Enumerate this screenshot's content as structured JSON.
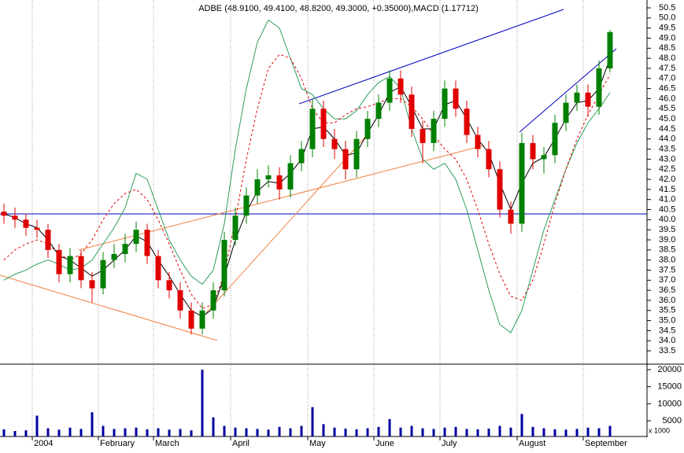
{
  "chart_data": {
    "type": "candlestick",
    "title": "ADBE (48.9100, 49.4100, 48.8200, 49.3000, +0.35000),MACD (1.17712)",
    "categories": [
      null,
      null,
      null,
      "2004",
      null,
      null,
      null,
      null,
      null,
      "February",
      null,
      null,
      null,
      null,
      "March",
      null,
      null,
      null,
      null,
      null,
      null,
      "April",
      null,
      null,
      null,
      null,
      null,
      null,
      "May",
      null,
      null,
      null,
      null,
      null,
      "June",
      null,
      null,
      null,
      null,
      null,
      "July",
      null,
      null,
      null,
      null,
      null,
      null,
      "August",
      null,
      null,
      null,
      null,
      null,
      "September",
      null,
      null
    ],
    "open": [
      40.4,
      40.2,
      40.0,
      39.6,
      39.5,
      38.5,
      37.3,
      38.2,
      37.0,
      36.6,
      38.0,
      38.3,
      38.8,
      39.5,
      38.2,
      37.0,
      36.5,
      35.5,
      34.6,
      35.5,
      36.5,
      39.0,
      40.2,
      41.2,
      42.0,
      42.2,
      41.5,
      42.8,
      43.5,
      45.5,
      44.0,
      43.5,
      42.5,
      44.0,
      45.0,
      45.8,
      47.0,
      46.2,
      44.5,
      43.8,
      45.0,
      46.5,
      45.5,
      44.2,
      43.5,
      42.5,
      40.5,
      39.8,
      43.8,
      43.0,
      43.2,
      44.8,
      45.8,
      46.3,
      45.6,
      47.5
    ],
    "high": [
      40.8,
      40.6,
      40.3,
      40.0,
      39.8,
      38.8,
      38.6,
      38.5,
      37.4,
      38.4,
      38.8,
      39.3,
      39.9,
      39.8,
      38.5,
      37.4,
      36.9,
      35.9,
      35.9,
      36.9,
      39.4,
      40.6,
      41.6,
      42.5,
      42.7,
      42.6,
      43.2,
      43.9,
      46.0,
      45.9,
      44.5,
      43.9,
      44.4,
      45.4,
      46.2,
      47.4,
      47.4,
      46.6,
      44.9,
      45.4,
      46.9,
      46.9,
      45.9,
      44.6,
      43.9,
      42.9,
      40.9,
      44.3,
      44.2,
      43.6,
      45.2,
      46.2,
      46.7,
      46.7,
      47.9,
      49.4
    ],
    "low": [
      39.8,
      39.6,
      39.2,
      39.1,
      38.1,
      36.9,
      36.9,
      36.6,
      35.9,
      36.3,
      37.6,
      37.9,
      38.4,
      37.8,
      36.6,
      36.1,
      35.1,
      34.3,
      34.3,
      35.1,
      36.2,
      38.7,
      39.8,
      40.8,
      41.6,
      41.0,
      41.1,
      42.4,
      43.1,
      43.6,
      43.0,
      42.0,
      42.1,
      43.6,
      44.6,
      45.4,
      45.8,
      44.1,
      42.8,
      43.4,
      44.6,
      45.1,
      43.8,
      43.1,
      42.1,
      40.1,
      39.3,
      39.4,
      42.5,
      42.3,
      42.8,
      44.4,
      45.4,
      45.1,
      45.2,
      47.3
    ],
    "close": [
      40.2,
      40.0,
      39.6,
      39.5,
      38.5,
      37.3,
      38.2,
      37.0,
      36.6,
      38.0,
      38.3,
      38.8,
      39.5,
      38.2,
      37.0,
      36.5,
      35.5,
      34.6,
      35.5,
      36.5,
      39.0,
      40.2,
      41.2,
      42.0,
      42.2,
      41.5,
      42.8,
      43.5,
      45.5,
      44.0,
      43.5,
      42.5,
      44.0,
      45.0,
      45.8,
      47.0,
      46.2,
      44.5,
      43.8,
      45.0,
      46.5,
      45.5,
      44.2,
      43.5,
      42.5,
      40.5,
      39.8,
      43.8,
      43.0,
      43.2,
      44.8,
      45.8,
      46.3,
      45.6,
      47.5,
      49.3
    ],
    "up_color": "#008000",
    "down_color": "#e00000",
    "overlays": [
      {
        "color": "#2e9e5a",
        "dash": false,
        "values": [
          37.0,
          37.3,
          37.5,
          37.8,
          38.0,
          37.8,
          37.5,
          37.6,
          38.0,
          38.8,
          39.6,
          40.6,
          42.3,
          42.0,
          40.5,
          39.0,
          38.0,
          37.2,
          36.8,
          37.5,
          39.8,
          43.5,
          46.5,
          48.8,
          49.9,
          49.5,
          48.0,
          46.5,
          46.2,
          45.5,
          45.0,
          45.0,
          45.4,
          46.2,
          46.8,
          47.1,
          46.5,
          44.5,
          43.0,
          42.5,
          42.8,
          42.0,
          40.5,
          38.5,
          36.5,
          34.8,
          34.4,
          35.5,
          37.5,
          39.5,
          41.0,
          42.5,
          43.8,
          44.8,
          45.5,
          46.3
        ]
      },
      {
        "color": "#e00000",
        "dash": true,
        "values": [
          38.0,
          38.5,
          38.8,
          39.0,
          38.8,
          38.3,
          38.0,
          38.3,
          39.0,
          40.0,
          40.8,
          41.3,
          41.5,
          41.0,
          40.0,
          38.8,
          37.5,
          36.3,
          35.6,
          35.8,
          37.3,
          40.0,
          43.0,
          45.5,
          47.5,
          48.2,
          48.0,
          47.0,
          45.5,
          44.8,
          44.8,
          45.2,
          45.5,
          45.6,
          45.8,
          46.0,
          46.0,
          45.6,
          45.0,
          44.2,
          43.5,
          43.0,
          42.0,
          40.5,
          38.8,
          37.3,
          36.2,
          36.0,
          37.0,
          38.8,
          40.8,
          42.5,
          44.0,
          45.2,
          46.2,
          47.2
        ]
      },
      {
        "color": "#000000",
        "dash": false,
        "values": [
          40.3,
          40.1,
          39.8,
          39.6,
          39.0,
          38.2,
          38.0,
          37.6,
          37.2,
          37.5,
          38.0,
          38.5,
          39.2,
          38.9,
          38.0,
          37.2,
          36.3,
          35.5,
          35.2,
          35.6,
          37.2,
          39.0,
          40.4,
          41.4,
          41.9,
          41.8,
          42.3,
          43.0,
          44.5,
          44.6,
          44.0,
          43.2,
          43.3,
          44.3,
          45.2,
          46.3,
          46.6,
          45.6,
          44.5,
          44.5,
          45.7,
          45.9,
          45.0,
          44.0,
          43.3,
          41.8,
          40.5,
          41.8,
          42.8,
          43.1,
          44.0,
          45.0,
          45.8,
          45.9,
          46.5,
          48.0
        ]
      }
    ],
    "ylim": [
      32.84,
      50.89
    ],
    "yticks": [
      33.5,
      {
        "value": 34,
        "label": "34.0"
      },
      34.5,
      {
        "value": 35,
        "label": "35.0"
      },
      35.5,
      {
        "value": 36,
        "label": "36.0"
      },
      36.5,
      {
        "value": 37,
        "label": "37.0"
      },
      37.5,
      {
        "value": 38,
        "label": "38.0"
      },
      38.5,
      {
        "value": 39,
        "label": "39.0"
      },
      39.5,
      {
        "value": 40,
        "label": "40.0"
      },
      40.5,
      {
        "value": 41,
        "label": "41.0"
      },
      41.5,
      {
        "value": 42,
        "label": "42.0"
      },
      42.5,
      {
        "value": 43,
        "label": "43.0"
      },
      43.5,
      {
        "value": 44,
        "label": "44.0"
      },
      44.5,
      {
        "value": 45,
        "label": "45.0"
      },
      45.5,
      {
        "value": 46,
        "label": "46.0"
      },
      46.5,
      {
        "value": 47,
        "label": "47.0"
      },
      47.5,
      {
        "value": 48,
        "label": "48.0"
      },
      48.5,
      {
        "value": 49,
        "label": "49.0"
      },
      49.5,
      {
        "value": 50,
        "label": "50.0"
      },
      50.5
    ],
    "grid": true,
    "volume": {
      "color": "#0000a0",
      "values": [
        2500,
        2000,
        2200,
        6500,
        2800,
        2400,
        3000,
        2600,
        7500,
        3500,
        2600,
        2800,
        3000,
        2500,
        2800,
        2400,
        2600,
        2200,
        20000,
        6000,
        3500,
        3000,
        2800,
        2600,
        2400,
        3200,
        2800,
        3500,
        9000,
        4000,
        3000,
        2700,
        2500,
        2800,
        3200,
        5500,
        3000,
        3500,
        2800,
        2600,
        3000,
        3200,
        2600,
        2500,
        2700,
        3500,
        3000,
        7000,
        3200,
        2800,
        2500,
        2400,
        2600,
        3000,
        2800,
        3500
      ],
      "ylim": [
        0,
        21620
      ],
      "yticks": [
        5000,
        10000,
        15000,
        20000
      ],
      "unit_label": "x 1000"
    }
  }
}
